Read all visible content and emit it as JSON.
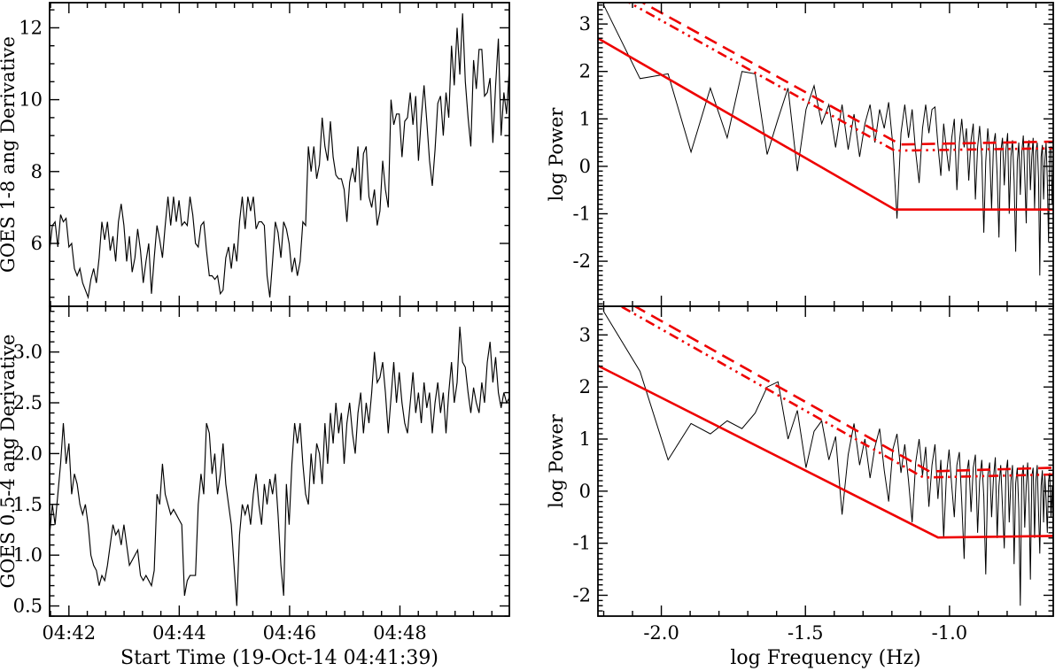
{
  "colors": {
    "background": "#ffffff",
    "axis": "#000000",
    "data_line": "#000000",
    "model_line": "#ee0000"
  },
  "chart_data": [
    {
      "id": "goes_long",
      "type": "line",
      "panel": "top-left",
      "ylabel": "GOES 1-8 ang Derivative",
      "xlabel": "",
      "x_axis": {
        "mode": "time",
        "range": [
          0,
          500
        ],
        "duration_s": 500,
        "start_label": "19-Oct-14 04:41:39",
        "major_ticks": [
          {
            "t_s": 21,
            "label": "04:42"
          },
          {
            "t_s": 141,
            "label": "04:44"
          },
          {
            "t_s": 261,
            "label": "04:46"
          },
          {
            "t_s": 381,
            "label": "04:48"
          }
        ],
        "minor_step_s": 20,
        "minor_offset_s": 1,
        "show_labels": false
      },
      "y_axis": {
        "range": [
          4.25,
          12.7
        ],
        "major_step": 2,
        "minor_step": 0.5,
        "decimals": 0
      },
      "values": [
        5.8,
        6.5,
        6.6,
        5.9,
        6.8,
        6.6,
        6.7,
        5.9,
        6.0,
        5.3,
        5.1,
        5.3,
        4.9,
        4.7,
        4.5,
        5.0,
        5.3,
        4.9,
        5.6,
        6.6,
        6.1,
        6.6,
        5.8,
        6.2,
        5.5,
        6.6,
        7.1,
        6.5,
        5.5,
        6.2,
        5.2,
        5.6,
        6.4,
        5.8,
        4.9,
        5.5,
        6.0,
        4.6,
        5.6,
        6.5,
        6.1,
        5.6,
        6.5,
        7.3,
        6.5,
        7.3,
        6.6,
        7.2,
        6.5,
        6.6,
        6.5,
        7.3,
        6.8,
        6.0,
        5.9,
        6.5,
        6.6,
        5.8,
        5.1,
        5.1,
        5.0,
        5.1,
        4.6,
        4.7,
        5.6,
        5.9,
        5.3,
        6.0,
        5.5,
        6.6,
        7.3,
        6.4,
        7.3,
        6.9,
        7.3,
        6.4,
        6.6,
        6.6,
        6.5,
        5.1,
        4.5,
        5.5,
        6.6,
        6.3,
        5.6,
        6.6,
        6.4,
        6.0,
        5.2,
        5.6,
        5.1,
        5.5,
        6.6,
        6.5,
        8.7,
        8.0,
        8.7,
        7.8,
        8.2,
        9.5,
        8.7,
        8.3,
        9.4,
        8.4,
        7.9,
        7.8,
        7.8,
        7.5,
        6.6,
        7.7,
        8.1,
        7.7,
        8.7,
        7.2,
        8.5,
        8.7,
        7.3,
        7.0,
        7.5,
        6.5,
        6.9,
        8.3,
        7.5,
        7.0,
        10.0,
        9.3,
        9.6,
        9.6,
        8.4,
        9.4,
        9.5,
        10.2,
        9.3,
        10.1,
        8.3,
        9.5,
        10.4,
        9.4,
        8.3,
        7.6,
        8.6,
        9.9,
        10.1,
        9.0,
        10.2,
        9.5,
        11.5,
        10.4,
        12.0,
        10.7,
        12.4,
        10.5,
        9.5,
        8.7,
        11.1,
        10.3,
        11.4,
        11.4,
        10.1,
        10.2,
        10.6,
        8.8,
        10.4,
        11.7,
        9.0,
        10.2,
        9.6,
        10.9
      ]
    },
    {
      "id": "goes_short",
      "type": "line",
      "panel": "bottom-left",
      "ylabel": "GOES 0.5-4 ang Derivative",
      "xlabel": "Start Time (19-Oct-14 04:41:39)",
      "x_axis": {
        "mode": "time",
        "range": [
          0,
          500
        ],
        "duration_s": 500,
        "start_label": "19-Oct-14 04:41:39",
        "major_ticks": [
          {
            "t_s": 21,
            "label": "04:42"
          },
          {
            "t_s": 141,
            "label": "04:44"
          },
          {
            "t_s": 261,
            "label": "04:46"
          },
          {
            "t_s": 381,
            "label": "04:48"
          }
        ],
        "minor_step_s": 20,
        "minor_offset_s": 1,
        "show_labels": true
      },
      "y_axis": {
        "range": [
          0.4,
          3.45
        ],
        "major_step": 0.5,
        "minor_step": 0.1,
        "decimals": 1
      },
      "values": [
        1.2,
        1.5,
        1.3,
        1.6,
        1.9,
        2.3,
        1.9,
        2.1,
        1.6,
        1.8,
        1.7,
        1.5,
        1.4,
        1.5,
        1.3,
        1.0,
        0.9,
        0.85,
        0.7,
        0.8,
        0.75,
        0.9,
        1.1,
        1.3,
        1.2,
        1.25,
        1.1,
        1.3,
        1.1,
        0.9,
        0.95,
        1.0,
        1.05,
        0.8,
        0.75,
        0.8,
        0.75,
        0.7,
        0.85,
        1.6,
        1.5,
        1.9,
        1.6,
        1.5,
        1.4,
        1.45,
        1.4,
        1.35,
        1.3,
        0.6,
        0.75,
        0.8,
        0.8,
        0.8,
        1.5,
        1.8,
        1.6,
        2.3,
        2.2,
        1.8,
        2.0,
        1.6,
        1.8,
        2.1,
        1.7,
        1.5,
        1.3,
        0.9,
        0.5,
        1.2,
        1.5,
        1.4,
        1.5,
        1.3,
        1.6,
        1.8,
        1.5,
        1.3,
        1.7,
        1.5,
        1.75,
        1.6,
        1.8,
        1.4,
        0.9,
        0.6,
        1.7,
        1.3,
        1.9,
        2.3,
        2.1,
        2.3,
        1.9,
        1.6,
        1.5,
        2.0,
        1.7,
        2.1,
        2.0,
        1.7,
        2.3,
        1.9,
        2.4,
        2.1,
        2.5,
        2.2,
        2.4,
        1.9,
        2.3,
        2.5,
        2.2,
        2.0,
        2.4,
        2.6,
        2.2,
        2.5,
        2.3,
        2.6,
        3.0,
        2.7,
        2.75,
        2.9,
        2.6,
        2.2,
        2.55,
        2.9,
        2.5,
        2.8,
        2.5,
        2.3,
        2.2,
        2.5,
        2.8,
        2.4,
        2.6,
        2.3,
        2.7,
        2.45,
        2.6,
        2.2,
        2.5,
        2.7,
        2.4,
        2.6,
        2.2,
        2.6,
        2.9,
        2.5,
        2.7,
        3.25,
        2.9,
        2.85,
        2.6,
        2.4,
        2.65,
        2.5,
        2.4,
        2.7,
        2.5,
        2.9,
        3.1,
        2.7,
        2.95,
        2.6,
        2.45,
        2.6,
        2.5,
        2.55
      ]
    },
    {
      "id": "spec_long",
      "type": "line",
      "panel": "top-right",
      "ylabel": "log Power",
      "xlabel": "",
      "x_axis": {
        "mode": "log_frequency",
        "range": [
          -2.22,
          -0.64
        ],
        "major_step": 0.5,
        "minor_step": 0.1,
        "decimals": 1,
        "show_labels": false,
        "f_start_hz": 0.00631,
        "f_end_hz": 0.2291
      },
      "y_axis": {
        "range": [
          -2.95,
          3.45
        ],
        "major_step": 1,
        "minor_step": 0.1,
        "decimals": 0
      },
      "values": [
        3.4,
        1.85,
        1.95,
        0.3,
        1.65,
        0.6,
        2.0,
        1.95,
        0.25,
        1.0,
        1.65,
        -0.1,
        1.2,
        1.7,
        0.9,
        1.3,
        0.4,
        1.3,
        0.35,
        1.1,
        0.2,
        0.9,
        1.3,
        0.5,
        1.2,
        0.8,
        1.35,
        0.45,
        -1.1,
        0.7,
        1.3,
        0.6,
        1.2,
        0.3,
        -0.35,
        0.8,
        1.3,
        0.7,
        1.2,
        1.25,
        0.45,
        -0.2,
        0.9,
        0.35,
        -0.1,
        0.6,
        1.0,
        -0.5,
        0.5,
        1.0,
        0.4,
        0.8,
        -0.3,
        0.55,
        0.9,
        -0.7,
        0.4,
        0.85,
        0.2,
        -1.4,
        0.1,
        0.8,
        0.3,
        -0.9,
        0.45,
        0.7,
        -0.2,
        -1.5,
        0.3,
        0.6,
        -0.4,
        0.35,
        0.7,
        -1.0,
        0.2,
        0.55,
        -0.3,
        -1.8,
        0.1,
        0.5,
        -0.6,
        0.3,
        0.65,
        -0.2,
        -1.2,
        0.4,
        0.55,
        -0.5,
        0.2,
        0.6,
        -0.9,
        0.3,
        0.5,
        -0.25,
        -2.3,
        0.2,
        0.45,
        -0.7,
        0.1,
        0.5,
        -0.3,
        -1.6,
        0.35,
        0.4,
        -0.8,
        0.25
      ],
      "model_lines": [
        {
          "name": "fit-powerlaw-solid",
          "style": "solid",
          "points": [
            [
              -2.22,
              2.7
            ],
            [
              -1.19,
              -0.91
            ],
            [
              -0.64,
              -0.91
            ]
          ]
        },
        {
          "name": "confidence-dashed",
          "style": "dashed",
          "points": [
            [
              -2.22,
              3.97
            ],
            [
              -1.17,
              0.46
            ],
            [
              -0.64,
              0.52
            ]
          ]
        },
        {
          "name": "confidence-dashdot",
          "style": "dashdot",
          "points": [
            [
              -2.22,
              3.82
            ],
            [
              -1.19,
              0.33
            ],
            [
              -0.64,
              0.38
            ]
          ]
        }
      ]
    },
    {
      "id": "spec_short",
      "type": "line",
      "panel": "bottom-right",
      "ylabel": "log Power",
      "xlabel": "log Frequency (Hz)",
      "x_axis": {
        "mode": "log_frequency",
        "range": [
          -2.22,
          -0.64
        ],
        "major_step": 0.5,
        "minor_step": 0.1,
        "decimals": 1,
        "show_labels": true,
        "f_start_hz": 0.00631,
        "f_end_hz": 0.2291
      },
      "y_axis": {
        "range": [
          -2.4,
          3.55
        ],
        "major_step": 1,
        "minor_step": 0.1,
        "decimals": 0
      },
      "values": [
        3.45,
        2.3,
        0.6,
        1.3,
        1.1,
        1.35,
        1.2,
        1.5,
        2.0,
        2.1,
        1.0,
        1.55,
        0.45,
        1.15,
        1.35,
        0.6,
        1.05,
        -0.45,
        0.7,
        1.3,
        0.5,
        1.0,
        0.25,
        0.85,
        1.2,
        0.4,
        -0.2,
        0.8,
        1.1,
        0.35,
        0.9,
        0.2,
        -0.6,
        0.55,
        1.0,
        0.3,
        0.85,
        -0.3,
        0.5,
        0.9,
        -0.15,
        0.6,
        -0.9,
        0.3,
        0.8,
        0.1,
        -0.5,
        0.5,
        0.75,
        -0.2,
        -1.3,
        0.3,
        0.6,
        -0.4,
        0.45,
        0.7,
        -0.8,
        0.2,
        0.6,
        -0.1,
        -1.6,
        0.3,
        0.55,
        -0.5,
        0.25,
        0.65,
        -0.9,
        0.1,
        0.5,
        -0.3,
        -1.1,
        0.35,
        0.6,
        -0.6,
        0.2,
        0.5,
        -1.4,
        0.15,
        0.45,
        -0.35,
        -2.2,
        0.25,
        0.5,
        -0.7,
        0.1,
        0.55,
        -0.25,
        -1.7,
        0.3,
        0.45,
        -0.9,
        0.2,
        0.5,
        -0.4,
        -1.2,
        0.1,
        0.4,
        -0.6,
        0.3,
        -0.15,
        -0.8,
        0.2,
        0.35,
        -0.5,
        0.1,
        -1.0
      ],
      "model_lines": [
        {
          "name": "fit-powerlaw-solid",
          "style": "solid",
          "points": [
            [
              -2.22,
              2.41
            ],
            [
              -1.04,
              -0.89
            ],
            [
              -0.64,
              -0.86
            ]
          ]
        },
        {
          "name": "confidence-dashed",
          "style": "dashed",
          "points": [
            [
              -2.22,
              3.95
            ],
            [
              -1.07,
              0.38
            ],
            [
              -0.64,
              0.45
            ]
          ]
        },
        {
          "name": "confidence-dashdot",
          "style": "dashdot",
          "points": [
            [
              -2.22,
              3.8
            ],
            [
              -1.09,
              0.26
            ],
            [
              -0.64,
              0.32
            ]
          ]
        }
      ]
    }
  ]
}
